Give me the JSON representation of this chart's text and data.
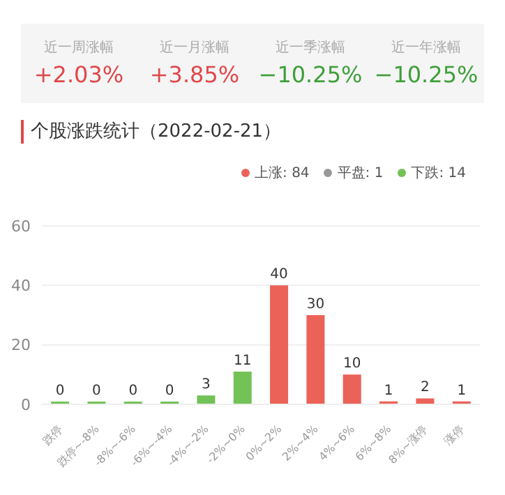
{
  "chart_data": {
    "type": "bar",
    "title": "个股涨跌统计（2022-02-21）",
    "annotations": [
      "近一周涨幅",
      "+2.03%",
      "近一月涨幅",
      "+3.85%",
      "近一季涨幅",
      "−10.25%",
      "近一年涨幅",
      "−10.25%"
    ],
    "categories": [
      "跌停",
      "跌停~-8%",
      "-8%~-6%",
      "-6%~-4%",
      "-4%~-2%",
      "-2%~0%",
      "0%~2%",
      "2%~4%",
      "4%~6%",
      "6%~8%",
      "8%~涨停",
      "涨停"
    ],
    "series": [
      {
        "name": "上涨: 84",
        "color": "#eb6259",
        "values": [
          null,
          null,
          null,
          null,
          null,
          null,
          40,
          30,
          10,
          1,
          2,
          1
        ]
      },
      {
        "name": "平盘: 1",
        "color": "#999999",
        "values": [
          null,
          null,
          null,
          null,
          null,
          null,
          null,
          null,
          null,
          null,
          null,
          null
        ]
      },
      {
        "name": "下跌: 14",
        "color": "#73c257",
        "values": [
          0,
          0,
          0,
          0,
          3,
          11,
          null,
          null,
          null,
          null,
          null,
          null
        ]
      }
    ],
    "stacked": true,
    "ylim": [
      0,
      60
    ],
    "yticks": [
      0,
      20,
      40,
      60
    ],
    "grid": "y",
    "legend": "top right",
    "data_labels": true
  }
}
